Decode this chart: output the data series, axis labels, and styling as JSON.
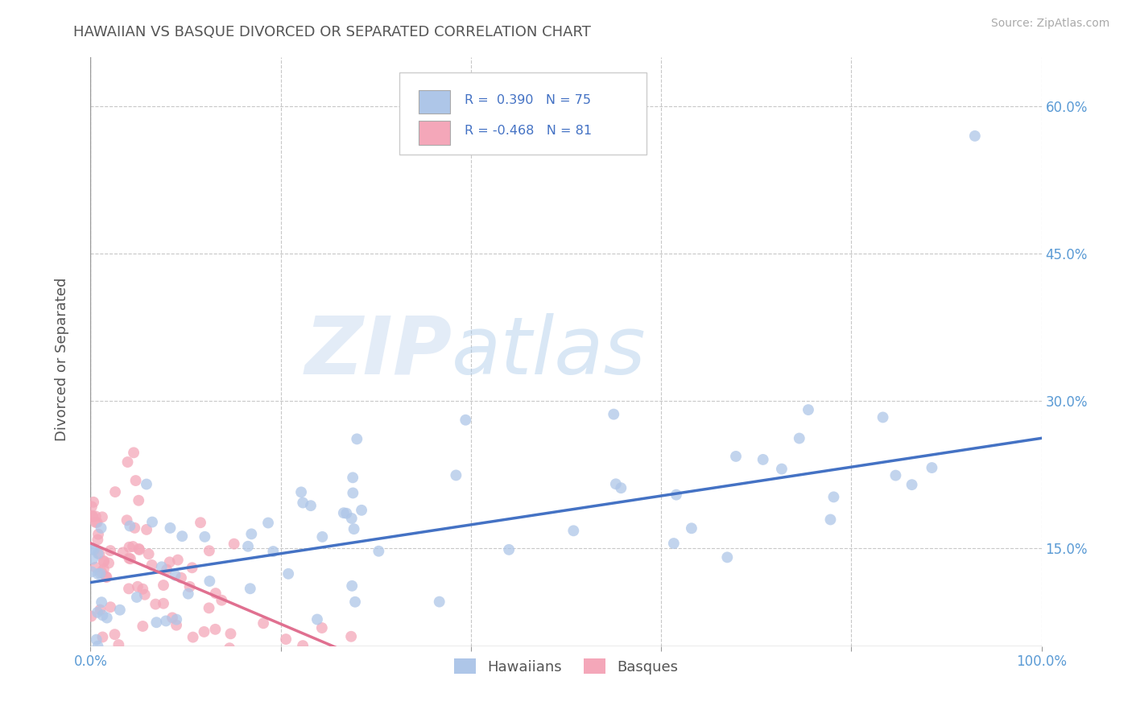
{
  "title": "HAWAIIAN VS BASQUE DIVORCED OR SEPARATED CORRELATION CHART",
  "source_text": "Source: ZipAtlas.com",
  "ylabel": "Divorced or Separated",
  "watermark": "ZIPatlas",
  "xlim": [
    0.0,
    1.0
  ],
  "ylim": [
    0.05,
    0.65
  ],
  "xticks": [
    0.0,
    0.2,
    0.4,
    0.6,
    0.8,
    1.0
  ],
  "xtick_labels": [
    "0.0%",
    "",
    "",
    "",
    "",
    "100.0%"
  ],
  "yticks": [
    0.15,
    0.3,
    0.45,
    0.6
  ],
  "ytick_labels": [
    "15.0%",
    "30.0%",
    "45.0%",
    "60.0%"
  ],
  "hawaiian_color": "#aec6e8",
  "basque_color": "#f4a7b9",
  "hawaiian_line_color": "#4472c4",
  "basque_line_color": "#e07090",
  "hawaiian_R": 0.39,
  "hawaiian_N": 75,
  "basque_R": -0.468,
  "basque_N": 81,
  "grid_color": "#c8c8c8",
  "background_color": "#ffffff",
  "title_color": "#555555",
  "axis_label_color": "#555555",
  "tick_label_color": "#5b9bd5",
  "legend_R_color": "#4472c4",
  "hawaiian_label": "Hawaiians",
  "basque_label": "Basques"
}
